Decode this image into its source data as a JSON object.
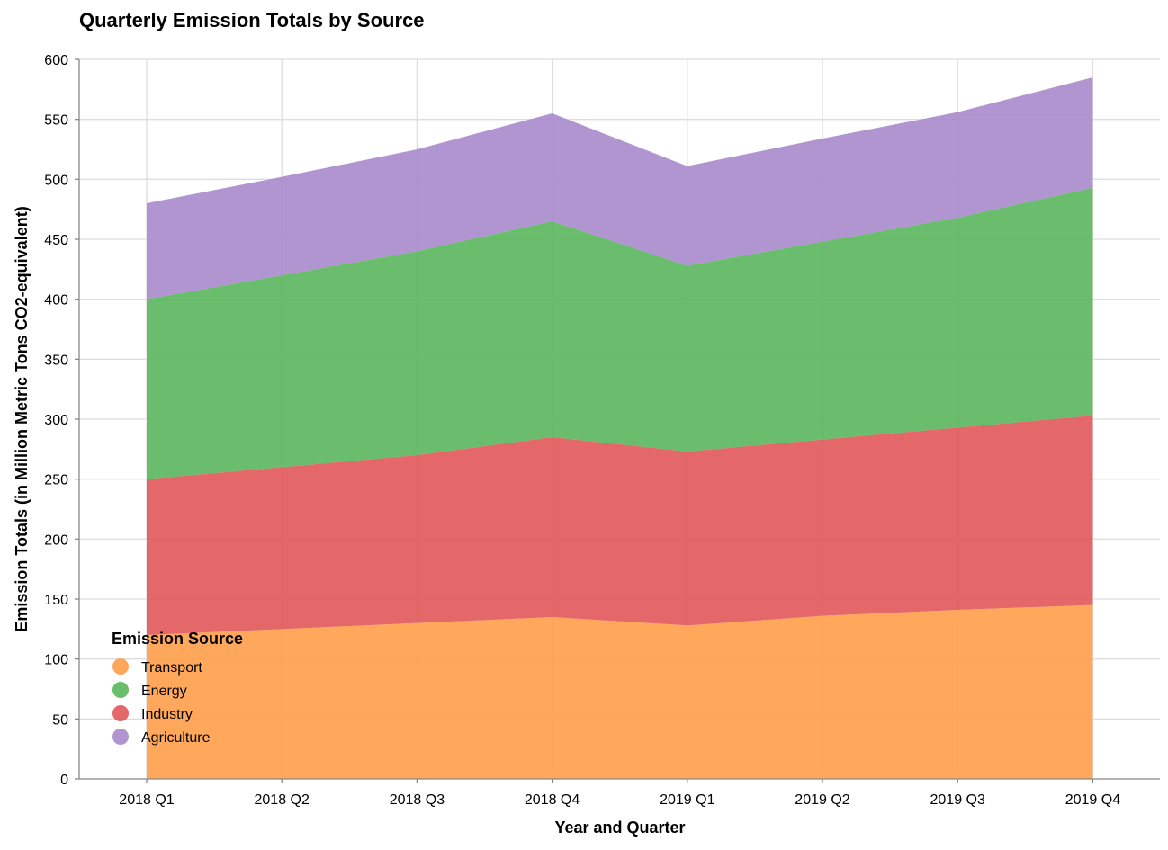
{
  "chart_data": {
    "type": "area",
    "stacked": true,
    "title": "Quarterly Emission Totals by Source",
    "xlabel": "Year and Quarter",
    "ylabel": "Emission Totals (in Million Metric Tons CO2-equivalent)",
    "ylim": [
      0,
      600
    ],
    "yticks": [
      0,
      50,
      100,
      150,
      200,
      250,
      300,
      350,
      400,
      450,
      500,
      550,
      600
    ],
    "grid": true,
    "categories": [
      "2018 Q1",
      "2018 Q2",
      "2018 Q3",
      "2018 Q4",
      "2019 Q1",
      "2019 Q2",
      "2019 Q3",
      "2019 Q4"
    ],
    "legend": {
      "title": "Emission Source",
      "placement": "bottom-left"
    },
    "series": [
      {
        "name": "Transport",
        "color": "#ff9f4a",
        "values": [
          120,
          125,
          130,
          135,
          128,
          136,
          141,
          145
        ]
      },
      {
        "name": "Industry",
        "color": "#e15759",
        "values": [
          130,
          135,
          140,
          150,
          145,
          147,
          152,
          158
        ]
      },
      {
        "name": "Energy",
        "color": "#59b65c",
        "values": [
          150,
          160,
          170,
          180,
          155,
          165,
          175,
          190
        ]
      },
      {
        "name": "Agriculture",
        "color": "#a98acc",
        "values": [
          80,
          82,
          85,
          90,
          83,
          86,
          88,
          92
        ]
      }
    ],
    "legend_order": [
      "Transport",
      "Energy",
      "Industry",
      "Agriculture"
    ]
  }
}
